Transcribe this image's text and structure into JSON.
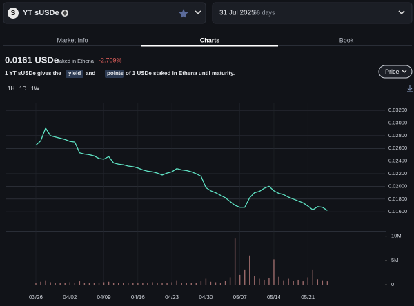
{
  "header": {
    "market": "YT sUSDe",
    "maturity_date": "31 Jul 2025",
    "days_left": "66 days"
  },
  "tabs": [
    "Market Info",
    "Charts",
    "Book"
  ],
  "active_tab": 1,
  "summary": {
    "price": "0.0161 USDe",
    "price_note": "staked in Ethena",
    "change": "-2.709%",
    "description": [
      "1 YT sUSDe gives the",
      "yield",
      "and",
      "points",
      "of 1 USDe staked in Ethena until maturity."
    ]
  },
  "price_button": "Price",
  "timeframes": [
    "1H",
    "1D",
    "1W"
  ],
  "chart_data": {
    "type": "line",
    "categories": [
      "03/26",
      null,
      null,
      null,
      null,
      null,
      null,
      "04/02",
      null,
      null,
      null,
      null,
      null,
      null,
      "04/09",
      null,
      null,
      null,
      null,
      null,
      null,
      "04/16",
      null,
      null,
      null,
      null,
      null,
      null,
      "04/23",
      null,
      null,
      null,
      null,
      null,
      null,
      "04/30",
      null,
      null,
      null,
      null,
      null,
      null,
      "05/07",
      null,
      null,
      null,
      null,
      null,
      null,
      "05/14",
      null,
      null,
      null,
      null,
      null,
      null,
      "05/21",
      null,
      null,
      null,
      null
    ],
    "series": [
      {
        "color": "#5fe3c4",
        "values": [
          0.0265,
          0.0272,
          0.0292,
          0.028,
          0.0278,
          0.0276,
          0.0274,
          0.0271,
          0.027,
          0.0253,
          0.0251,
          0.025,
          0.0248,
          0.0244,
          0.0243,
          0.0247,
          0.0237,
          0.0235,
          0.0234,
          0.0232,
          0.0231,
          0.0229,
          0.0226,
          0.0224,
          0.0223,
          0.0221,
          0.0218,
          0.0221,
          0.0223,
          0.0228,
          0.0226,
          0.0225,
          0.0223,
          0.022,
          0.0216,
          0.0198,
          0.0193,
          0.019,
          0.0186,
          0.0182,
          0.0176,
          0.017,
          0.0167,
          0.0167,
          0.0182,
          0.019,
          0.0192,
          0.0197,
          0.02,
          0.0193,
          0.0189,
          0.0187,
          0.0183,
          0.018,
          0.0177,
          0.0174,
          0.0169,
          0.0163,
          0.0168,
          0.0167,
          0.0162
        ]
      },
      {
        "type": "bar",
        "axis": "y2",
        "color": "#9a6a6a",
        "values": [
          300000,
          600000,
          900000,
          500000,
          400000,
          300000,
          400000,
          500000,
          300000,
          700000,
          400000,
          300000,
          300000,
          400000,
          500000,
          600000,
          300000,
          300000,
          400000,
          300000,
          300000,
          400000,
          300000,
          300000,
          500000,
          300000,
          400000,
          300000,
          500000,
          900000,
          400000,
          300000,
          300000,
          400000,
          700000,
          1200000,
          600000,
          500000,
          400000,
          800000,
          1500000,
          9500000,
          2000000,
          3000000,
          6000000,
          1800000,
          1200000,
          1000000,
          1400000,
          5200000,
          1600000,
          900000,
          1200000,
          800000,
          1000000,
          700000,
          1500000,
          3000000,
          1100000,
          900000,
          700000
        ]
      }
    ],
    "ylim": [
      0.0133,
      0.0331
    ],
    "yticks": [
      {
        "value": 0.016,
        "label": "0.01600"
      },
      {
        "value": 0.018,
        "label": "0.01800"
      },
      {
        "value": 0.02,
        "label": "0.02000"
      },
      {
        "value": 0.022,
        "label": "0.02200"
      },
      {
        "value": 0.024,
        "label": "0.02400"
      },
      {
        "value": 0.026,
        "label": "0.02600"
      },
      {
        "value": 0.028,
        "label": "0.02800"
      },
      {
        "value": 0.03,
        "label": "0.03000"
      },
      {
        "value": 0.032,
        "label": "0.03200"
      }
    ],
    "y2lim": [
      0,
      10800000
    ],
    "y2ticks": [
      0,
      {
        "value": 5000000,
        "label": "5M"
      },
      {
        "value": 10000000,
        "label": "10M"
      }
    ],
    "grid": true
  }
}
